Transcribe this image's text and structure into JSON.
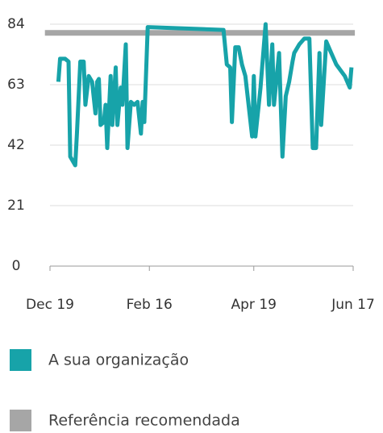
{
  "chart_data": {
    "type": "line",
    "xlim": [
      0,
      180
    ],
    "xticks": [
      {
        "value": 0,
        "label": "Dec 19"
      },
      {
        "value": 59,
        "label": "Feb 16"
      },
      {
        "value": 121,
        "label": "Apr 19"
      },
      {
        "value": 180,
        "label": "Jun 17"
      }
    ],
    "ylim": [
      0,
      84
    ],
    "yticks": [
      0,
      21,
      42,
      63,
      84
    ],
    "grid": true,
    "series": [
      {
        "name": "A sua organização",
        "color": "#17a3a9",
        "x": [
          5,
          6,
          9,
          11,
          12,
          15,
          16,
          18,
          20,
          21,
          23,
          25,
          27,
          28,
          29,
          30,
          32,
          33,
          34,
          36,
          37,
          39,
          40,
          42,
          43,
          45,
          46,
          48,
          50,
          52,
          54,
          55,
          56,
          58,
          103,
          105,
          107,
          108,
          110,
          112,
          114,
          116,
          120,
          121,
          122,
          125,
          128,
          130,
          132,
          133,
          136,
          138,
          140,
          142,
          144,
          145,
          148,
          151,
          154,
          156,
          158,
          160,
          161,
          164,
          167,
          170,
          175,
          178,
          179
        ],
        "values": [
          64,
          72,
          72,
          71,
          38,
          35,
          46,
          71,
          71,
          56,
          66,
          64,
          53,
          64,
          65,
          49,
          50,
          56,
          41,
          66,
          49,
          69,
          49,
          62,
          56,
          77,
          41,
          57,
          56,
          57,
          46,
          57,
          50,
          83,
          82,
          70,
          69,
          50,
          76,
          76,
          70,
          66,
          45,
          66,
          45,
          62,
          84,
          56,
          77,
          56,
          74,
          38,
          59,
          64,
          71,
          74,
          77,
          79,
          79,
          41,
          41,
          74,
          49,
          78,
          74,
          70,
          66,
          62,
          69
        ]
      },
      {
        "name": "Referência recomendada",
        "color": "#a6a6a6",
        "x": [
          -3,
          181
        ],
        "values": [
          81,
          81
        ]
      }
    ]
  }
}
